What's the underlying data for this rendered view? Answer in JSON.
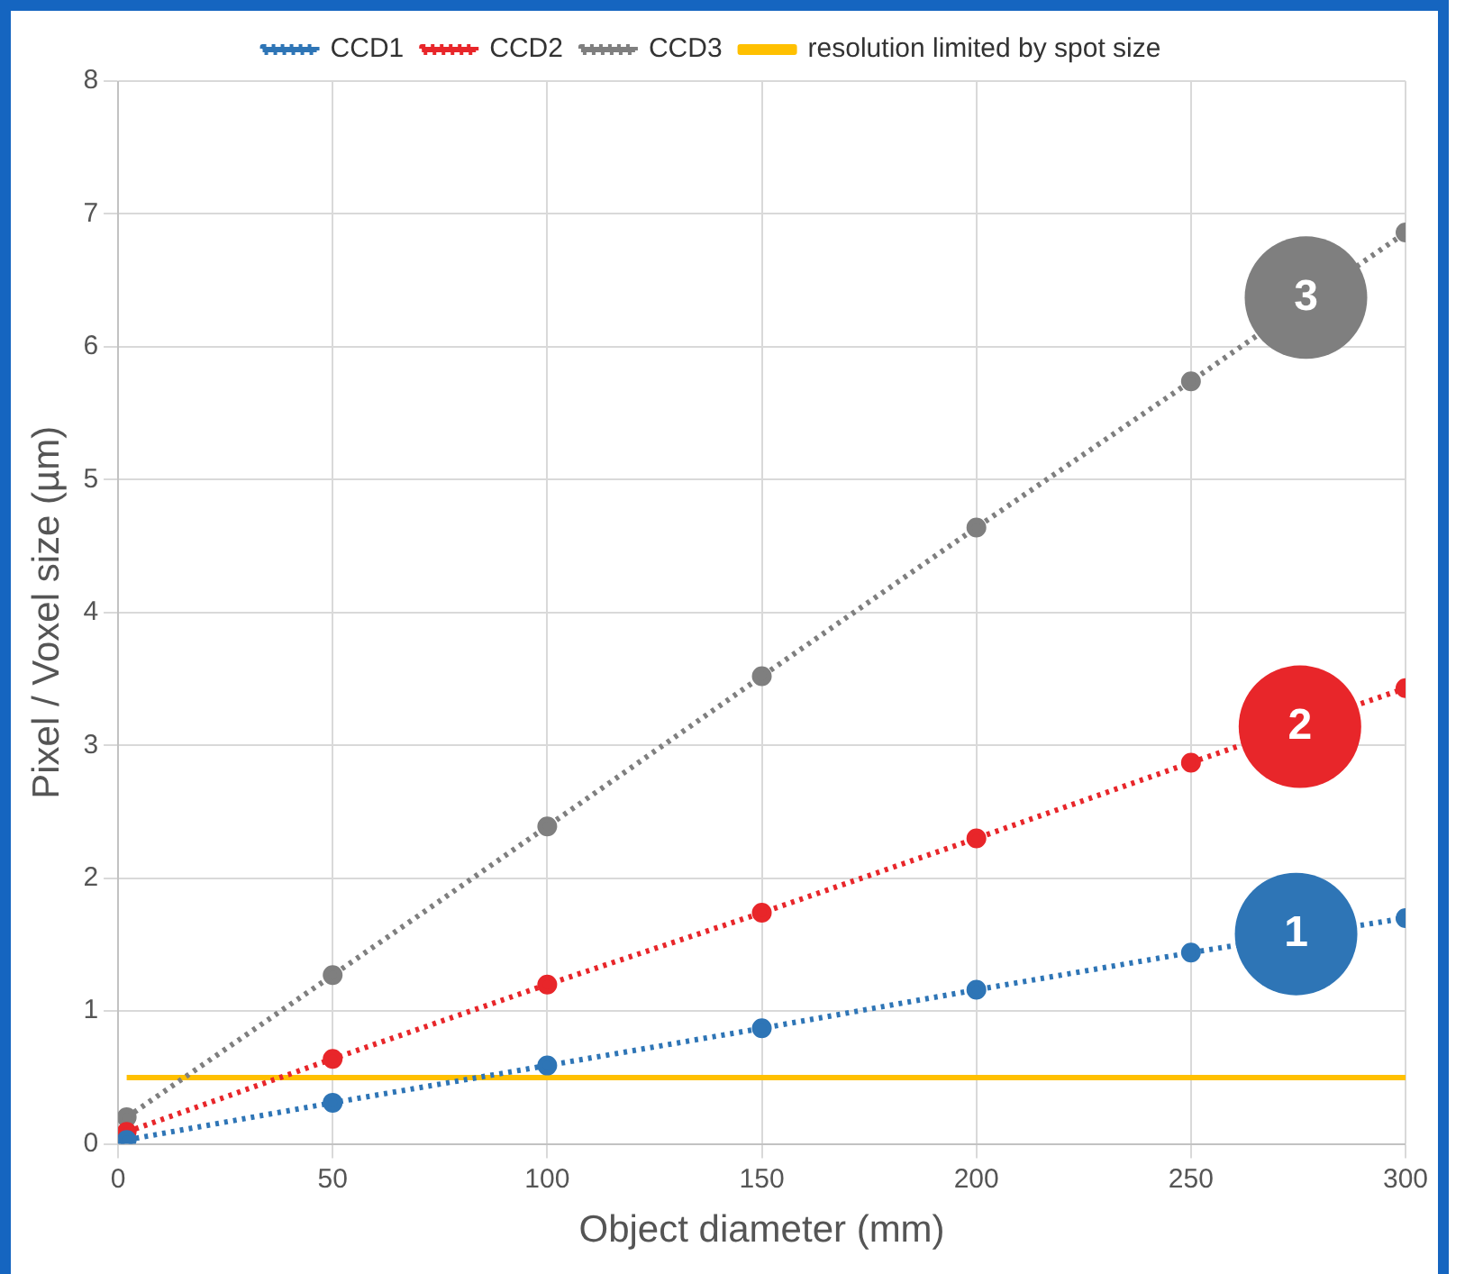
{
  "chart_data": {
    "type": "line",
    "xlabel": "Object diameter (mm)",
    "ylabel": "Pixel / Voxel size (µm)",
    "xlim": [
      0,
      300
    ],
    "xticks": [
      0,
      50,
      100,
      150,
      200,
      250,
      300
    ],
    "ylim": [
      0,
      8
    ],
    "yticks": [
      0,
      1,
      2,
      3,
      4,
      5,
      6,
      7,
      8
    ],
    "grid": true,
    "legend": "top",
    "series": [
      {
        "name": "CCD1",
        "color": "#2e75b6",
        "marker": "circle",
        "line_style": "dotted",
        "x": [
          2,
          50,
          100,
          150,
          200,
          250,
          300
        ],
        "values": [
          0.03,
          0.31,
          0.59,
          0.87,
          1.16,
          1.44,
          1.7
        ]
      },
      {
        "name": "CCD2",
        "color": "#e8262a",
        "marker": "circle",
        "line_style": "dotted",
        "x": [
          2,
          50,
          100,
          150,
          200,
          250,
          300
        ],
        "values": [
          0.09,
          0.64,
          1.2,
          1.74,
          2.3,
          2.87,
          3.43
        ]
      },
      {
        "name": "CCD3",
        "color": "#7f7f7f",
        "marker": "circle",
        "line_style": "dotted",
        "x": [
          2,
          50,
          100,
          150,
          200,
          250,
          300
        ],
        "values": [
          0.2,
          1.27,
          2.39,
          3.52,
          4.64,
          5.74,
          6.86
        ]
      },
      {
        "name": "resolution limited by spot size",
        "color": "#ffc000",
        "marker": "none",
        "line_style": "solid",
        "x": [
          2,
          300
        ],
        "values": [
          0.5,
          0.5
        ]
      }
    ],
    "annotations": [
      {
        "text": "1",
        "x": 274.5,
        "y": 1.58
      },
      {
        "text": "2",
        "x": 275.4,
        "y": 3.14
      },
      {
        "text": "3",
        "x": 276.8,
        "y": 6.37
      }
    ]
  }
}
